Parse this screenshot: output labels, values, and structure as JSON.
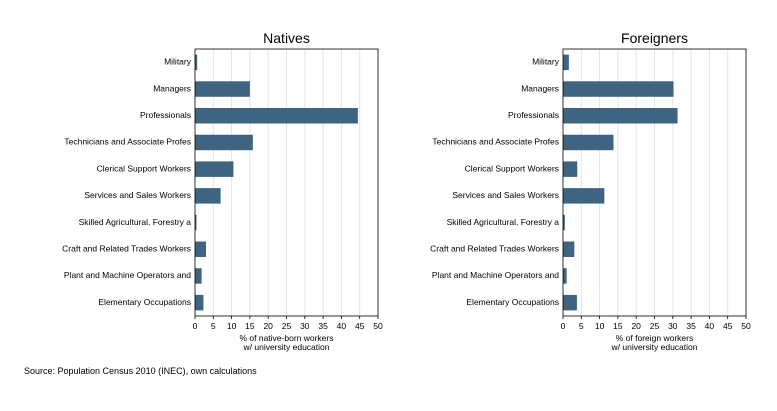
{
  "note": "Source: Population Census 2010 (INEC), own calculations",
  "chart_data": [
    {
      "type": "bar",
      "orientation": "horizontal",
      "title": "Natives",
      "xlabel": [
        "% of native-born workers",
        "w/ university education"
      ],
      "xlim": [
        0,
        50
      ],
      "xticks": [
        0,
        5,
        10,
        15,
        20,
        25,
        30,
        35,
        40,
        45,
        50
      ],
      "grid": true,
      "categories": [
        "Military",
        "Managers",
        "Professionals",
        "Technicians and Associate Profes",
        "Clerical Support Workers",
        "Services and Sales Workers",
        "Skilled Agricultural, Forestry a",
        "Craft and Related Trades Workers",
        "Plant and Machine Operators and",
        "Elementary Occupations"
      ],
      "values": [
        0.6,
        15,
        44.5,
        15.8,
        10.5,
        7,
        0.4,
        3,
        1.8,
        2.3
      ],
      "color": "#3e6482"
    },
    {
      "type": "bar",
      "orientation": "horizontal",
      "title": "Foreigners",
      "xlabel": [
        "% of foreign workers",
        "w/ university education"
      ],
      "xlim": [
        0,
        50
      ],
      "xticks": [
        0,
        5,
        10,
        15,
        20,
        25,
        30,
        35,
        40,
        45,
        50
      ],
      "grid": true,
      "categories": [
        "Military",
        "Managers",
        "Professionals",
        "Technicians and Associate Profes",
        "Clerical Support Workers",
        "Services and Sales Workers",
        "Skilled Agricultural, Forestry a",
        "Craft and Related Trades Workers",
        "Plant and Machine Operators and",
        "Elementary Occupations"
      ],
      "values": [
        1.6,
        30.2,
        31.3,
        13.8,
        3.9,
        11.3,
        0.5,
        3.1,
        1,
        3.8
      ],
      "color": "#3e6482"
    }
  ]
}
